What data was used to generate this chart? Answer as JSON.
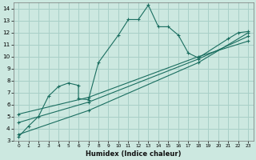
{
  "xlabel": "Humidex (Indice chaleur)",
  "background_color": "#cce8e0",
  "grid_color": "#a8d0c8",
  "line_color": "#1a6e60",
  "xlim": [
    -0.5,
    23.5
  ],
  "ylim": [
    3,
    14.5
  ],
  "xticks": [
    0,
    1,
    2,
    3,
    4,
    5,
    6,
    7,
    8,
    9,
    10,
    11,
    12,
    13,
    14,
    15,
    16,
    17,
    18,
    19,
    20,
    21,
    22,
    23
  ],
  "yticks": [
    3,
    4,
    5,
    6,
    7,
    8,
    9,
    10,
    11,
    12,
    13,
    14
  ],
  "series1_x": [
    0,
    1,
    2,
    3,
    4,
    5,
    6,
    6,
    7,
    8,
    10,
    11,
    12,
    13,
    14,
    15,
    16,
    17,
    18,
    21,
    22,
    23
  ],
  "series1_y": [
    3.3,
    4.2,
    5.0,
    6.7,
    7.5,
    7.8,
    7.6,
    6.5,
    6.4,
    9.5,
    11.8,
    13.1,
    13.1,
    14.3,
    12.5,
    12.5,
    11.8,
    10.3,
    9.9,
    11.5,
    12.0,
    12.1
  ],
  "line1_x": [
    0,
    7,
    18,
    23
  ],
  "line1_y": [
    3.5,
    5.5,
    9.5,
    12.0
  ],
  "line2_x": [
    0,
    7,
    18,
    23
  ],
  "line2_y": [
    4.5,
    6.2,
    9.8,
    11.7
  ],
  "line3_x": [
    0,
    7,
    18,
    23
  ],
  "line3_y": [
    5.2,
    6.6,
    10.0,
    11.3
  ]
}
